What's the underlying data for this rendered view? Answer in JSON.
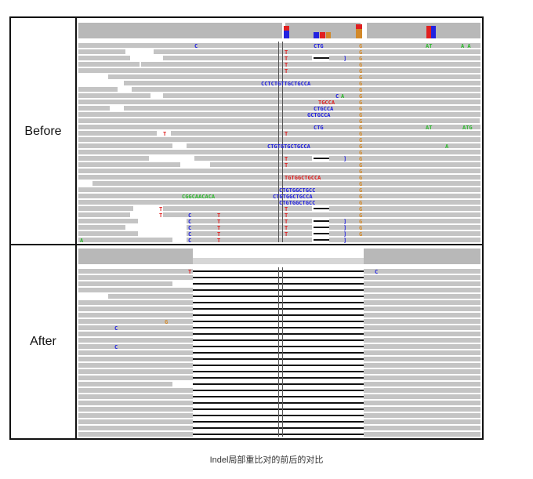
{
  "panels": {
    "before_label": "Before",
    "after_label": "After"
  },
  "caption": "Indel局部重比对的前后的对比",
  "colors": {
    "read": "#c4c4c4",
    "coverage": "#b5b5b5",
    "base_A": "#2fb82f",
    "base_C": "#2222e0",
    "base_G": "#d2892a",
    "base_T": "#e02020",
    "deletion": "#111111"
  },
  "before_annotations": [
    {
      "text": "C"
    },
    {
      "text": "CTG"
    },
    {
      "text": "G"
    },
    {
      "text": "AT"
    },
    {
      "text": "A A"
    },
    {
      "text": "CCTCTGTTGCTGCCA"
    },
    {
      "text": "TGCCA"
    },
    {
      "text": "CTGCCA"
    },
    {
      "text": "GCTGCCA"
    },
    {
      "text": "CTGTGTGCTGCCA"
    },
    {
      "text": "TGTGGCTGCCA"
    },
    {
      "text": "CTGTGGCTGCC"
    },
    {
      "text": "CGGCAACACA"
    },
    {
      "text": "CTGTGGCTGCCA"
    },
    {
      "text": "ATG"
    }
  ],
  "after_annotations": [
    {
      "text": "T"
    },
    {
      "text": "C"
    },
    {
      "text": "G"
    }
  ]
}
